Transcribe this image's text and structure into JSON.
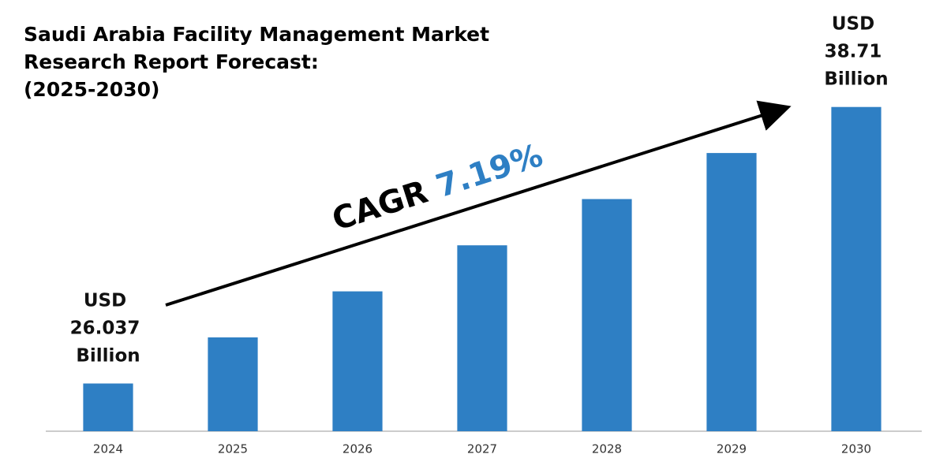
{
  "chart_data": {
    "type": "bar",
    "title": [
      "Saudi Arabia Facility Management Market",
      "Research Report Forecast:",
      "(2025-2030)"
    ],
    "categories": [
      "2024",
      "2025",
      "2026",
      "2027",
      "2028",
      "2029",
      "2030"
    ],
    "values": [
      26.037,
      28.15,
      30.26,
      32.37,
      34.49,
      36.6,
      38.71
    ],
    "value_labels": [
      "USD 26.037 Billion",
      null,
      null,
      null,
      null,
      null,
      "USD 38.71 Billion"
    ],
    "color": "#2e7fc4",
    "ylim": [
      23.85,
      40
    ],
    "annotations": [
      "CAGR",
      "7.19%"
    ],
    "annotation_color": "#2e7fc4"
  }
}
